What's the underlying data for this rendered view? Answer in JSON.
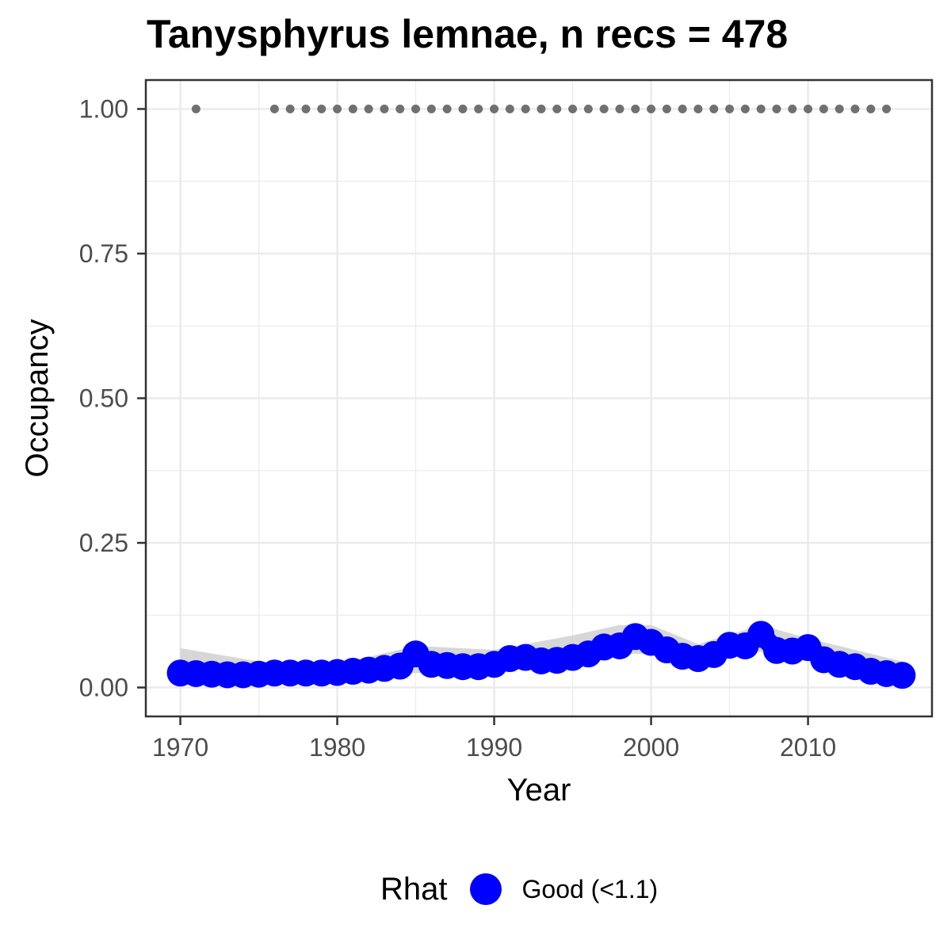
{
  "chart_data": {
    "type": "line",
    "title": "Tanysphyrus lemnae, n recs = 478",
    "xlabel": "Year",
    "ylabel": "Occupancy",
    "xlim": [
      1967.8,
      2017.9
    ],
    "ylim": [
      -0.05,
      1.05
    ],
    "xticks": [
      1970,
      1980,
      1990,
      2000,
      2010
    ],
    "xtick_labels": [
      "1970",
      "1980",
      "1990",
      "2000",
      "2010"
    ],
    "yticks": [
      0,
      0.25,
      0.5,
      0.75,
      1
    ],
    "ytick_labels": [
      "0.00",
      "0.25",
      "0.50",
      "0.75",
      "1.00"
    ],
    "grid": true,
    "legend": {
      "title": "Rhat",
      "position": "bottom",
      "entries": [
        {
          "label": "Good (<1.1)",
          "color": "#0000ff"
        }
      ]
    },
    "colors": {
      "series": "#0000ff",
      "ribbon": "#d3d3d3",
      "records": "#707070",
      "panel_border": "#333333",
      "grid": "#ebebeb"
    },
    "series": [
      {
        "name": "Good (<1.1)",
        "x": [
          1970,
          1971,
          1972,
          1973,
          1974,
          1975,
          1976,
          1977,
          1978,
          1979,
          1980,
          1981,
          1982,
          1983,
          1984,
          1985,
          1986,
          1987,
          1988,
          1989,
          1990,
          1991,
          1992,
          1993,
          1994,
          1995,
          1996,
          1997,
          1998,
          1999,
          2000,
          2001,
          2002,
          2003,
          2004,
          2005,
          2006,
          2007,
          2008,
          2009,
          2010,
          2011,
          2012,
          2013,
          2014,
          2015,
          2016
        ],
        "y": [
          0.025,
          0.024,
          0.023,
          0.022,
          0.022,
          0.023,
          0.025,
          0.025,
          0.025,
          0.025,
          0.026,
          0.028,
          0.03,
          0.033,
          0.037,
          0.058,
          0.04,
          0.038,
          0.036,
          0.036,
          0.04,
          0.05,
          0.052,
          0.046,
          0.047,
          0.052,
          0.058,
          0.07,
          0.072,
          0.088,
          0.078,
          0.065,
          0.054,
          0.05,
          0.057,
          0.073,
          0.072,
          0.092,
          0.064,
          0.063,
          0.069,
          0.048,
          0.04,
          0.036,
          0.028,
          0.024,
          0.021
        ]
      }
    ],
    "ribbon": {
      "x": [
        1970,
        1975,
        1980,
        1985,
        1990,
        1995,
        1998,
        2000,
        2003,
        2007,
        2010,
        2016
      ],
      "lower": [
        0.012,
        0.014,
        0.017,
        0.025,
        0.027,
        0.04,
        0.058,
        0.058,
        0.04,
        0.062,
        0.05,
        0.012
      ],
      "upper": [
        0.068,
        0.045,
        0.04,
        0.072,
        0.065,
        0.09,
        0.108,
        0.108,
        0.075,
        0.108,
        0.085,
        0.045
      ]
    },
    "records": {
      "x": [
        1971,
        1976,
        1977,
        1978,
        1979,
        1980,
        1981,
        1982,
        1983,
        1984,
        1985,
        1986,
        1987,
        1988,
        1989,
        1990,
        1991,
        1992,
        1993,
        1994,
        1995,
        1996,
        1997,
        1998,
        1999,
        2000,
        2001,
        2002,
        2003,
        2004,
        2005,
        2006,
        2007,
        2008,
        2009,
        2010,
        2011,
        2012,
        2013,
        2014,
        2015
      ],
      "y": 1.0
    }
  }
}
